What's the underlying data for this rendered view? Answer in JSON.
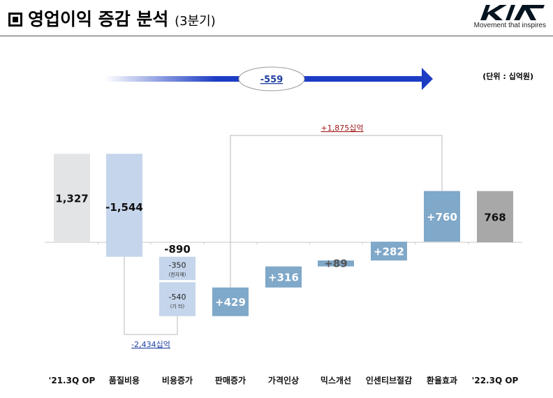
{
  "header": {
    "title": "영업이익 증감 분석",
    "subtitle": "(3분기)",
    "logo_word": "KIA",
    "logo_tagline": "Movement that inspires"
  },
  "unit_label": "(단위 : 십억원)",
  "arrow_label": "-559",
  "bracket_top_label": "+1,875십억",
  "bracket_bottom_label": "-2,434십억",
  "colors": {
    "start_bar": "#e3e4e6",
    "negative_bar": "#c5d5eb",
    "positive_bar": "#7fa8c9",
    "end_bar": "#a8a8a8",
    "arrow": "#1c3cc4",
    "top_label": "#a01818",
    "bottom_label": "#2040a0"
  },
  "chart_data": {
    "type": "bar",
    "subtype": "waterfall",
    "categories": [
      "'21.3Q OP",
      "품질비용",
      "비용증가",
      "판매증가",
      "가격인상",
      "믹스개선",
      "인센티브절감",
      "환율효과",
      "'22.3Q OP"
    ],
    "values": [
      1327,
      -1544,
      -890,
      429,
      316,
      89,
      282,
      760,
      768
    ],
    "value_labels": [
      "1,327",
      "-1,544",
      "-890",
      "+429",
      "+316",
      "+89",
      "+282",
      "+760",
      "768"
    ],
    "breakdown": {
      "category": "비용증가",
      "parts": [
        {
          "value": -350,
          "label": "-350",
          "note": "(원자재)"
        },
        {
          "value": -540,
          "label": "-540",
          "note": "(기 타)"
        }
      ]
    }
  }
}
